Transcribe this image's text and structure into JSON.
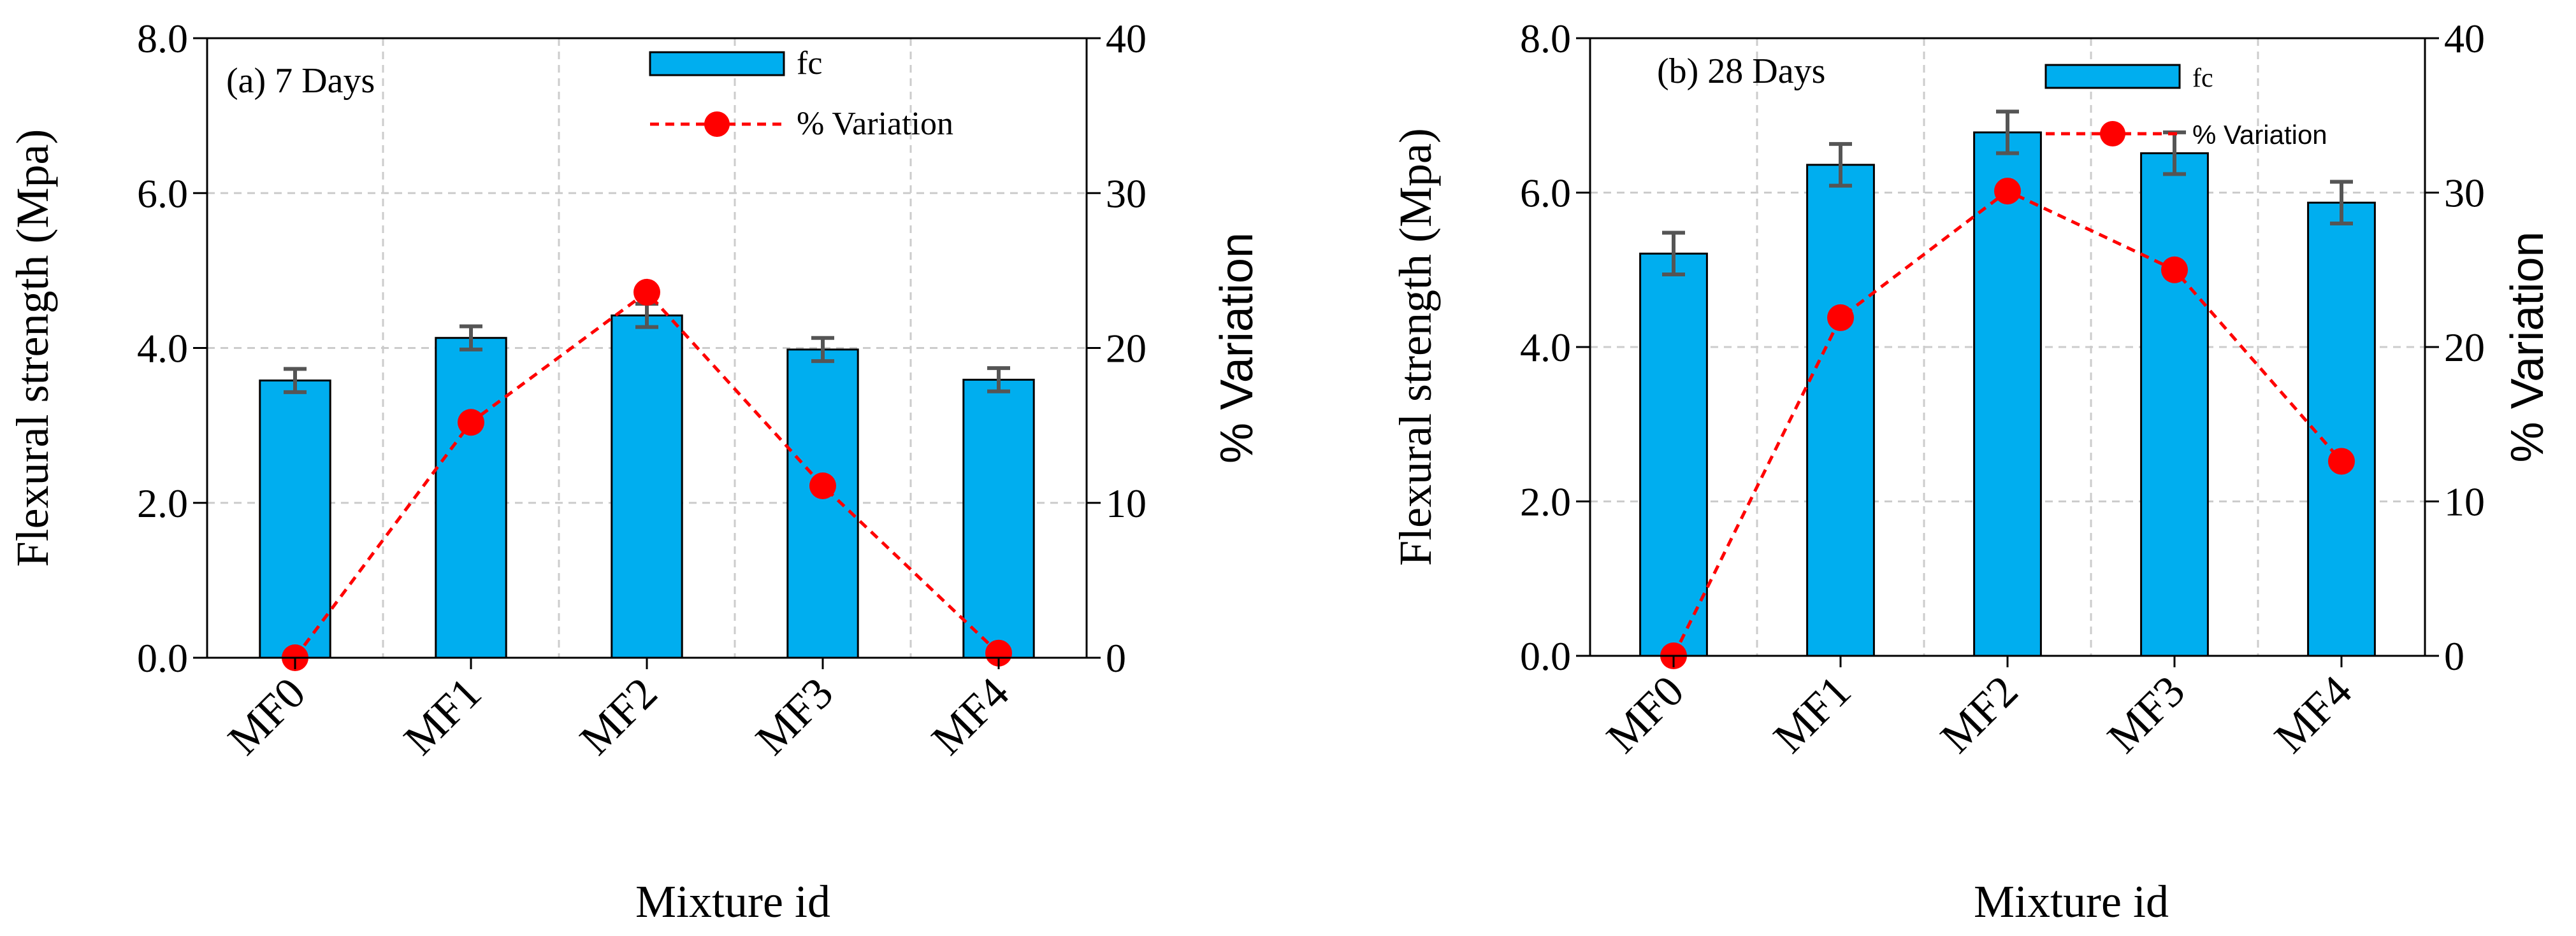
{
  "chart_data": [
    {
      "type": "bar",
      "title": "(a) 7 Days",
      "categories": [
        "MF0",
        "MF1",
        "MF2",
        "MF3",
        "MF4"
      ],
      "xlabel": "Mixture id",
      "ylabel": "Flexural strength (Mpa)",
      "ylabel2": "% Variation",
      "ylim": [
        0,
        8
      ],
      "ylim2": [
        0,
        40
      ],
      "yticks": [
        "0.0",
        "2.0",
        "4.0",
        "6.0",
        "8.0"
      ],
      "yticks2": [
        "0",
        "10",
        "20",
        "30",
        "40"
      ],
      "grid": true,
      "legend_position": "top-center",
      "series": [
        {
          "name": "fc",
          "kind": "bar",
          "axis": "left",
          "color": "#00AEEF",
          "values": [
            3.58,
            4.13,
            4.42,
            3.98,
            3.59
          ],
          "errors": [
            0.15,
            0.15,
            0.15,
            0.15,
            0.15
          ]
        },
        {
          "name": "% Variation",
          "kind": "line",
          "axis": "right",
          "color": "#FF0000",
          "values": [
            0,
            15.2,
            23.6,
            11.1,
            0.3
          ]
        }
      ]
    },
    {
      "type": "bar",
      "title": "(b) 28 Days",
      "categories": [
        "MF0",
        "MF1",
        "MF2",
        "MF3",
        "MF4"
      ],
      "xlabel": "Mixture id",
      "ylabel": "Flexural  strength (Mpa)",
      "ylabel2": "% Variation",
      "ylim": [
        0,
        8
      ],
      "ylim2": [
        0,
        40
      ],
      "yticks": [
        "0.0",
        "2.0",
        "4.0",
        "6.0",
        "8.0"
      ],
      "yticks2": [
        "0",
        "10",
        "20",
        "30",
        "40"
      ],
      "grid": true,
      "legend_position": "top-right",
      "series": [
        {
          "name": "fc",
          "kind": "bar",
          "axis": "left",
          "color": "#00AEEF",
          "values": [
            5.21,
            6.36,
            6.78,
            6.51,
            5.87
          ],
          "errors": [
            0.27,
            0.27,
            0.27,
            0.27,
            0.27
          ]
        },
        {
          "name": "% Variation",
          "kind": "line",
          "axis": "right",
          "color": "#FF0000",
          "values": [
            0,
            21.9,
            30.1,
            25.0,
            12.6
          ]
        }
      ]
    }
  ]
}
